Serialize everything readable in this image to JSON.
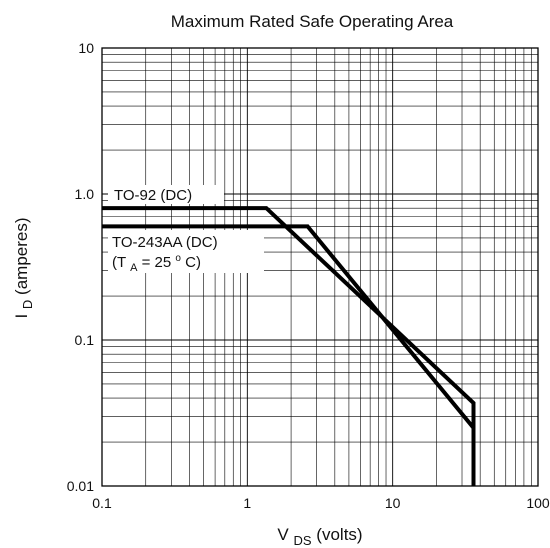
{
  "chart_data": {
    "type": "line",
    "title": "Maximum Rated Safe Operating Area",
    "xlabel": {
      "main": "V",
      "sub": "DS",
      "suffix": " (volts)"
    },
    "ylabel": {
      "main": "I",
      "sub": "D",
      "suffix": " (amperes)"
    },
    "x_scale": "log",
    "y_scale": "log",
    "xlim": [
      0.1,
      100
    ],
    "ylim": [
      0.01,
      10
    ],
    "x_ticks": [
      0.1,
      1,
      10,
      100
    ],
    "x_tick_labels": [
      "0.1",
      "1",
      "10",
      "100"
    ],
    "y_ticks": [
      0.01,
      0.1,
      1,
      10
    ],
    "y_tick_labels": [
      "0.01",
      "0.1",
      "1.0",
      "10"
    ],
    "grid": true,
    "series": [
      {
        "name": "TO-92 (DC)",
        "points": [
          [
            0.1,
            0.8
          ],
          [
            1.35,
            0.8
          ],
          [
            36,
            0.037
          ],
          [
            36,
            0.01
          ]
        ]
      },
      {
        "name": "TO-243AA (DC)",
        "points": [
          [
            0.1,
            0.6
          ],
          [
            2.6,
            0.6
          ],
          [
            36,
            0.025
          ],
          [
            36,
            0.01
          ]
        ]
      }
    ],
    "annotations": {
      "to92": "TO-92 (DC)",
      "to243": "TO-243AA (DC)",
      "cond_open": "(T",
      "cond_sub": "A",
      "cond_mid": " = 25",
      "cond_sup": "o",
      "cond_close": "C)"
    }
  }
}
